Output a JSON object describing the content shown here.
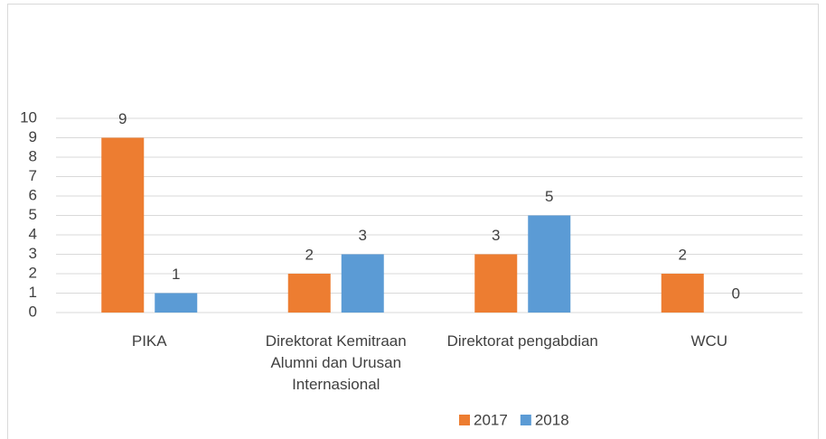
{
  "chart_data": {
    "type": "bar",
    "categories": [
      "PIKA",
      "Direktorat Kemitraan Alumni dan Urusan Internasional",
      "Direktorat pengabdian",
      "WCU"
    ],
    "series": [
      {
        "name": "2017",
        "color": "#ed7d31",
        "values": [
          9,
          2,
          3,
          2
        ]
      },
      {
        "name": "2018",
        "color": "#5b9bd5",
        "values": [
          1,
          3,
          5,
          0
        ]
      }
    ],
    "ylim": [
      0,
      10
    ],
    "yticks": [
      0,
      1,
      2,
      3,
      4,
      5,
      6,
      7,
      8,
      9,
      10
    ],
    "grid": true,
    "legend": "bottom"
  }
}
